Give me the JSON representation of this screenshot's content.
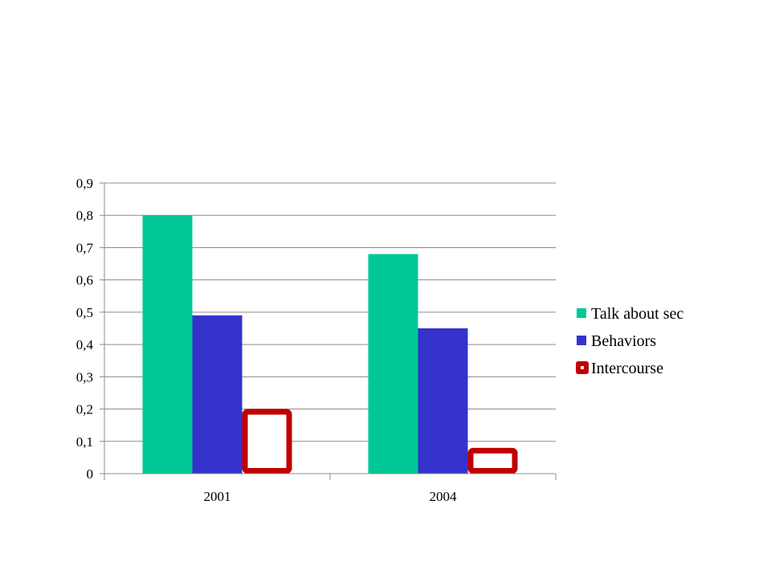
{
  "colors": {
    "background": "#ffffff",
    "grid": "#8c8c8c",
    "axis": "#8c8c8c"
  },
  "chart_data": {
    "type": "bar",
    "title": "",
    "xlabel": "",
    "ylabel": "",
    "categories": [
      "2001",
      "2004"
    ],
    "ylim": [
      0,
      0.9
    ],
    "yticks": [
      "0",
      "0,1",
      "0,2",
      "0,3",
      "0,4",
      "0,5",
      "0,6",
      "0,7",
      "0,8",
      "0,9"
    ],
    "grid": true,
    "legend_position": "right",
    "series": [
      {
        "name": "Talk about sec",
        "values": [
          0.8,
          0.68
        ],
        "color": "#00c896",
        "style": "filled"
      },
      {
        "name": "Behaviors",
        "values": [
          0.49,
          0.45
        ],
        "color": "#3333cc",
        "style": "filled"
      },
      {
        "name": "Intercourse",
        "values": [
          0.2,
          0.08
        ],
        "color": "#c00000",
        "style": "outlined"
      }
    ]
  }
}
